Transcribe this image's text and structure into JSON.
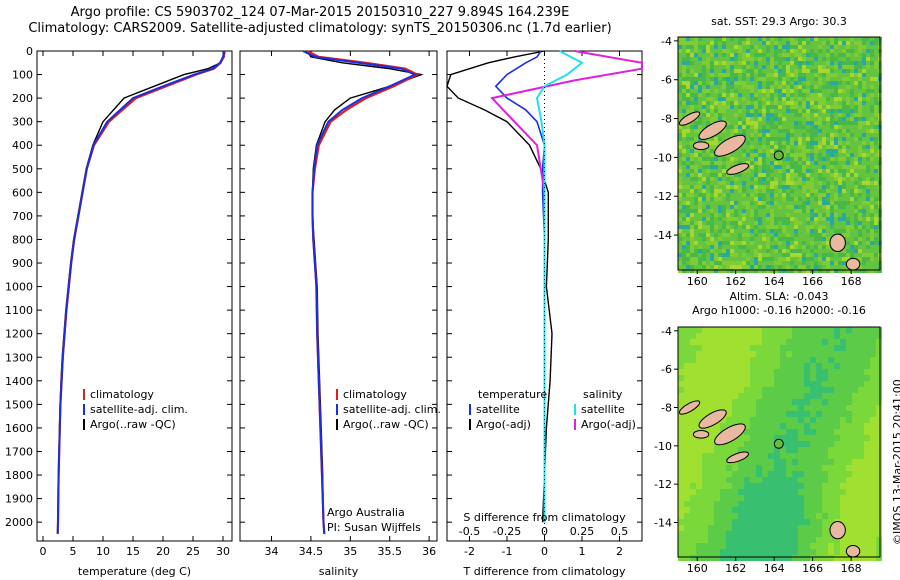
{
  "titles": {
    "line1": "Argo profile: CS 5903702_124 07-Mar-2015 20150310_227 9.894S 164.239E",
    "line2": "Climatology: CARS2009. Satellite-adjusted climatology: synTS_20150306.nc (1.7d earlier)"
  },
  "map_titles": {
    "sst": "sat. SST: 29.3 Argo: 30.3",
    "sla_line1": "Altim. SLA: -0.043",
    "sla_line2": "Argo h1000: -0.16 h2000: -0.16"
  },
  "watermark": "©IMOS 13-Mar-2015 20:41:00",
  "panel_notes": {
    "org": "Argo Australia",
    "pi": "PI: Susan Wijffels",
    "diff_top_label": "S difference from climatology"
  },
  "colors": {
    "climatology": "#e0201c",
    "satellite": "#1c2ee0",
    "argo": "#000000",
    "salinity_sat": "#22e0e8",
    "salinity_argo": "#e020e0",
    "map_land": "#e8b8a0",
    "map_marker": "#1a6e12"
  },
  "chart_data": [
    {
      "type": "line",
      "xlabel": "temperature (deg C)",
      "ylabel": "",
      "xlim": [
        -1,
        31.5
      ],
      "ylim": [
        2080,
        0
      ],
      "xticks": [
        0,
        5,
        10,
        15,
        20,
        25,
        30
      ],
      "yticks": [
        0,
        100,
        200,
        300,
        400,
        500,
        600,
        700,
        800,
        900,
        1000,
        1100,
        1200,
        1300,
        1400,
        1500,
        1600,
        1700,
        1800,
        1900,
        2000
      ],
      "legend": [
        "climatology",
        "satellite-adj. clim.",
        "Argo(..raw -QC)"
      ],
      "series": [
        {
          "name": "climatology",
          "x": [
            30.3,
            30.1,
            29.6,
            28.5,
            25.5,
            20.5,
            15.5,
            11,
            8.5,
            7.3,
            6.6,
            5.9,
            5.2,
            4.7,
            4.3,
            3.9,
            3.6,
            3.3,
            3.1,
            2.9,
            2.8,
            2.6,
            2.5,
            2.45
          ],
          "y": [
            0,
            25,
            50,
            75,
            100,
            150,
            200,
            300,
            400,
            500,
            600,
            700,
            800,
            900,
            1000,
            1100,
            1200,
            1300,
            1400,
            1500,
            1600,
            1800,
            2000,
            2050
          ]
        },
        {
          "name": "satellite-adj. clim.",
          "x": [
            30.2,
            30.0,
            29.5,
            28.3,
            25.2,
            20,
            15,
            10.7,
            8.4,
            7.3,
            6.6,
            5.9,
            5.2,
            4.7,
            4.3,
            3.9,
            3.6,
            3.3,
            3.1,
            2.9,
            2.8,
            2.6,
            2.5,
            2.45
          ],
          "y": [
            0,
            25,
            50,
            75,
            100,
            150,
            200,
            300,
            400,
            500,
            600,
            700,
            800,
            900,
            1000,
            1100,
            1200,
            1300,
            1400,
            1500,
            1600,
            1800,
            2000,
            2050
          ]
        },
        {
          "name": "Argo(..raw -QC)",
          "x": [
            30.3,
            30.2,
            29.6,
            27.5,
            23.5,
            18.5,
            13.5,
            10,
            8.3,
            7.2,
            6.5,
            5.8,
            5.1,
            4.6,
            4.2,
            3.8,
            3.5,
            3.2,
            3.0,
            2.85,
            2.75,
            2.6,
            2.5
          ],
          "y": [
            0,
            25,
            50,
            75,
            100,
            150,
            200,
            300,
            400,
            500,
            600,
            700,
            800,
            900,
            1000,
            1100,
            1200,
            1300,
            1400,
            1500,
            1600,
            1800,
            2000
          ]
        }
      ]
    },
    {
      "type": "line",
      "xlabel": "salinity",
      "ylabel": "",
      "xlim": [
        33.6,
        36.1
      ],
      "ylim": [
        2080,
        0
      ],
      "xticks": [
        34,
        34.5,
        35,
        35.5,
        36
      ],
      "legend": [
        "climatology",
        "satellite-adj. clim.",
        "Argo(..raw -QC)"
      ],
      "series": [
        {
          "name": "climatology",
          "x": [
            34.45,
            34.6,
            35.2,
            35.7,
            35.85,
            35.55,
            35.2,
            34.95,
            34.75,
            34.6,
            34.55,
            34.52,
            34.52,
            34.53,
            34.55,
            34.57,
            34.58,
            34.6,
            34.62,
            34.64,
            34.66,
            34.67
          ],
          "y": [
            0,
            25,
            50,
            75,
            100,
            150,
            200,
            250,
            300,
            400,
            500,
            600,
            700,
            800,
            900,
            1000,
            1200,
            1400,
            1600,
            1800,
            2000,
            2050
          ]
        },
        {
          "name": "satellite-adj. clim.",
          "x": [
            34.4,
            34.55,
            35.1,
            35.65,
            35.82,
            35.5,
            35.15,
            34.9,
            34.72,
            34.58,
            34.54,
            34.52,
            34.52,
            34.53,
            34.55,
            34.57,
            34.58,
            34.6,
            34.62,
            34.64,
            34.66,
            34.67
          ],
          "y": [
            0,
            25,
            50,
            75,
            100,
            150,
            200,
            250,
            300,
            400,
            500,
            600,
            700,
            800,
            900,
            1000,
            1200,
            1400,
            1600,
            1800,
            2000,
            2050
          ]
        },
        {
          "name": "Argo(..raw -QC)",
          "x": [
            34.45,
            34.5,
            34.9,
            35.5,
            35.9,
            35.5,
            35.0,
            34.8,
            34.68,
            34.57,
            34.53,
            34.52,
            34.52,
            34.54,
            34.56,
            34.58,
            34.59,
            34.61,
            34.63,
            34.65,
            34.66
          ],
          "y": [
            0,
            25,
            50,
            75,
            100,
            150,
            200,
            250,
            300,
            400,
            500,
            600,
            700,
            800,
            900,
            1000,
            1200,
            1400,
            1600,
            1800,
            2000
          ]
        }
      ]
    },
    {
      "type": "line",
      "xlabel": "T difference from climatology",
      "ylabel": "",
      "xlim": [
        -2.6,
        2.6
      ],
      "ylim": [
        2080,
        0
      ],
      "xticks": [
        -2,
        -1,
        0,
        1,
        2
      ],
      "top_xticks": [
        -0.5,
        -0.25,
        0,
        0.25,
        0.5
      ],
      "legend_temperature": [
        "temperature",
        "satellite",
        "Argo(-adj)"
      ],
      "legend_salinity": [
        "salinity",
        "satellite",
        "Argo(-adj)"
      ],
      "series": [
        {
          "name": "satellite",
          "x": [
            -0.1,
            -0.2,
            -0.5,
            -1.0,
            -1.3,
            -1.0,
            -0.5,
            -0.2,
            0.0,
            -0.05,
            -0.05,
            0,
            0,
            0,
            0,
            0,
            0,
            0
          ],
          "y": [
            0,
            25,
            50,
            100,
            150,
            200,
            250,
            300,
            400,
            500,
            600,
            800,
            1000,
            1200,
            1400,
            1600,
            1800,
            2000
          ]
        },
        {
          "name": "Argo(-adj)",
          "x": [
            0.0,
            -0.8,
            -1.5,
            -2.5,
            -3.0,
            -2.3,
            -1.6,
            -1.0,
            -0.4,
            -0.1,
            0.1,
            0.1,
            0.05,
            0.2,
            0.15,
            0.05,
            0.0,
            -0.05
          ],
          "y": [
            0,
            25,
            50,
            100,
            150,
            200,
            250,
            300,
            400,
            500,
            600,
            800,
            1000,
            1200,
            1400,
            1600,
            1800,
            2000
          ]
        },
        {
          "name": "satellite",
          "x": [
            0.1,
            0.25,
            0.15,
            0.0,
            -0.05,
            -0.02,
            0,
            0,
            0,
            0,
            0,
            0
          ],
          "y": [
            0,
            50,
            100,
            150,
            200,
            300,
            400,
            600,
            800,
            1000,
            1400,
            2000
          ]
        },
        {
          "name": "Argo(-adj)",
          "x": [
            0.2,
            0.7,
            0.8,
            0.2,
            -0.35,
            -0.2,
            -0.05,
            0,
            0,
            0,
            0,
            0
          ],
          "y": [
            0,
            50,
            75,
            125,
            200,
            300,
            400,
            600,
            800,
            1000,
            1400,
            2000
          ]
        }
      ]
    },
    {
      "type": "heatmap",
      "title": "sat. SST: 29.3 Argo: 30.3",
      "xlim": [
        159,
        169.5
      ],
      "ylim": [
        -15.8,
        -3.8
      ],
      "xticks": [
        160,
        162,
        164,
        166,
        168
      ],
      "yticks": [
        -4,
        -6,
        -8,
        -10,
        -12,
        -14
      ],
      "argo_position": [
        164.239,
        -9.894
      ]
    },
    {
      "type": "heatmap",
      "title": "Altim. SLA: -0.043",
      "xlim": [
        159,
        169.5
      ],
      "ylim": [
        -15.8,
        -3.8
      ],
      "xticks": [
        160,
        162,
        164,
        166,
        168
      ],
      "yticks": [
        -4,
        -6,
        -8,
        -10,
        -12,
        -14
      ],
      "argo_position": [
        164.239,
        -9.894
      ]
    }
  ]
}
